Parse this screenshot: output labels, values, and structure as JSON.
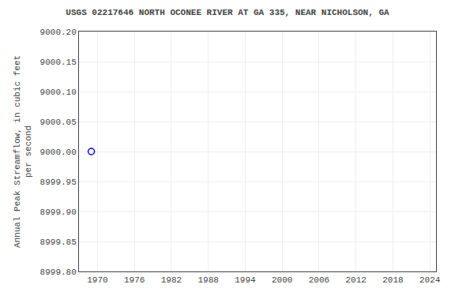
{
  "chart_data": {
    "type": "scatter",
    "title": "USGS 02217646 NORTH OCONEE RIVER AT GA 335, NEAR NICHOLSON, GA",
    "ylabel": "Annual Peak Streamflow, in cubic feet\nper second",
    "x": [
      1969
    ],
    "values": [
      9000.0
    ],
    "color": "#0000ff",
    "marker": "circle-open",
    "xlim": [
      1967,
      2025
    ],
    "ylim": [
      8999.8,
      9000.2
    ],
    "xticks": [
      1970,
      1976,
      1982,
      1988,
      1994,
      2000,
      2006,
      2012,
      2018,
      2024
    ],
    "yticks": [
      {
        "value": 8999.8,
        "label": "8999.80"
      },
      8999.85,
      {
        "value": 8999.9,
        "label": "8999.90"
      },
      8999.95,
      {
        "value": 9000.0,
        "label": "9000.00"
      },
      9000.05,
      {
        "value": 9000.1,
        "label": "9000.10"
      },
      9000.15,
      {
        "value": 9000.2,
        "label": "9000.20"
      }
    ],
    "grid": true
  }
}
